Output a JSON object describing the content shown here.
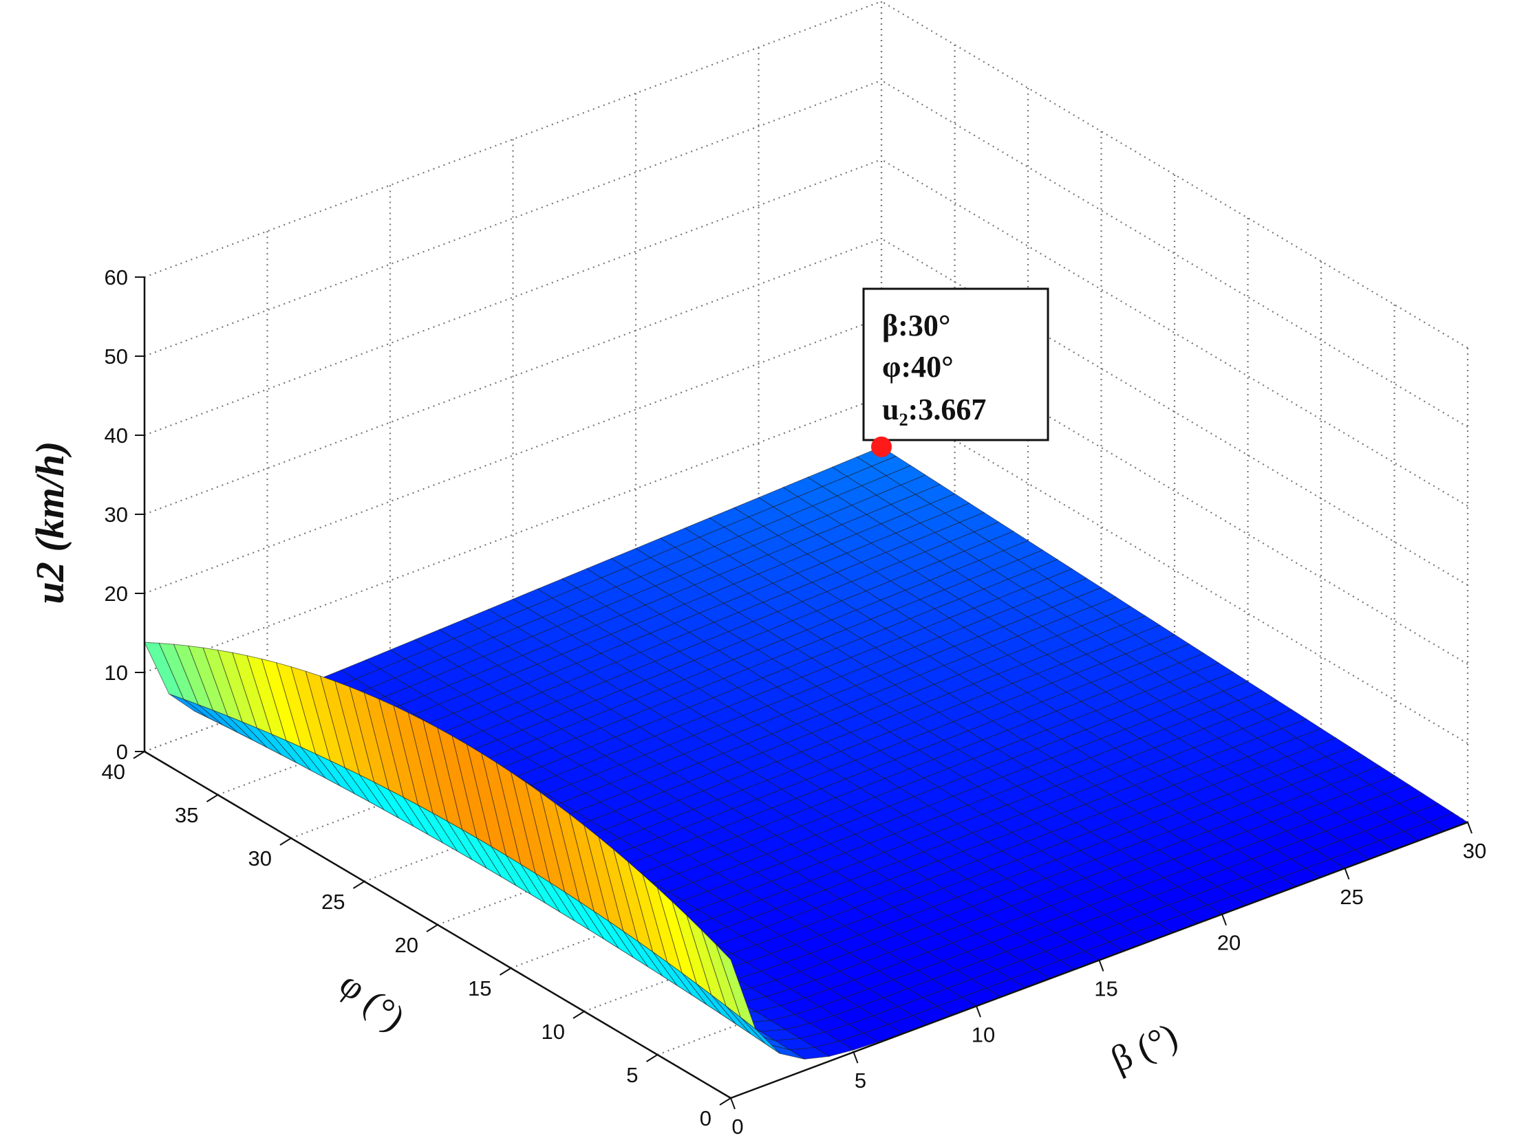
{
  "chart_data": {
    "type": "surface3d",
    "title": "",
    "xlabel": "β (°)",
    "ylabel": "φ (°)",
    "zlabel": "u2 (km/h)",
    "xlim": [
      0,
      30
    ],
    "ylim": [
      0,
      40
    ],
    "zlim": [
      0,
      60
    ],
    "x_ticks": [
      "0",
      "5",
      "10",
      "15",
      "20",
      "25",
      "30"
    ],
    "y_ticks": [
      "0",
      "5",
      "10",
      "15",
      "20",
      "25",
      "30",
      "35",
      "40"
    ],
    "z_ticks": [
      "0",
      "10",
      "20",
      "30",
      "40",
      "50",
      "60"
    ],
    "grid": true,
    "colormap": "jet",
    "surface": {
      "description_points": [
        {
          "beta": 0,
          "phi": 40,
          "u2": 19
        },
        {
          "beta": 0,
          "phi": 25,
          "u2": 25
        },
        {
          "beta": 0,
          "phi": 10,
          "u2": 25
        },
        {
          "beta": 0,
          "phi": 0,
          "u2": 22
        },
        {
          "beta": 30,
          "phi": 40,
          "u2": 3.667
        },
        {
          "beta": 30,
          "phi": 0,
          "u2": 0
        }
      ]
    },
    "annotation": {
      "marker": {
        "beta": 30,
        "phi": 40,
        "u2": 3.667,
        "color": "#ff1a1a"
      },
      "lines": [
        "β:30°",
        "φ:40°",
        "u₂:3.667"
      ]
    }
  }
}
